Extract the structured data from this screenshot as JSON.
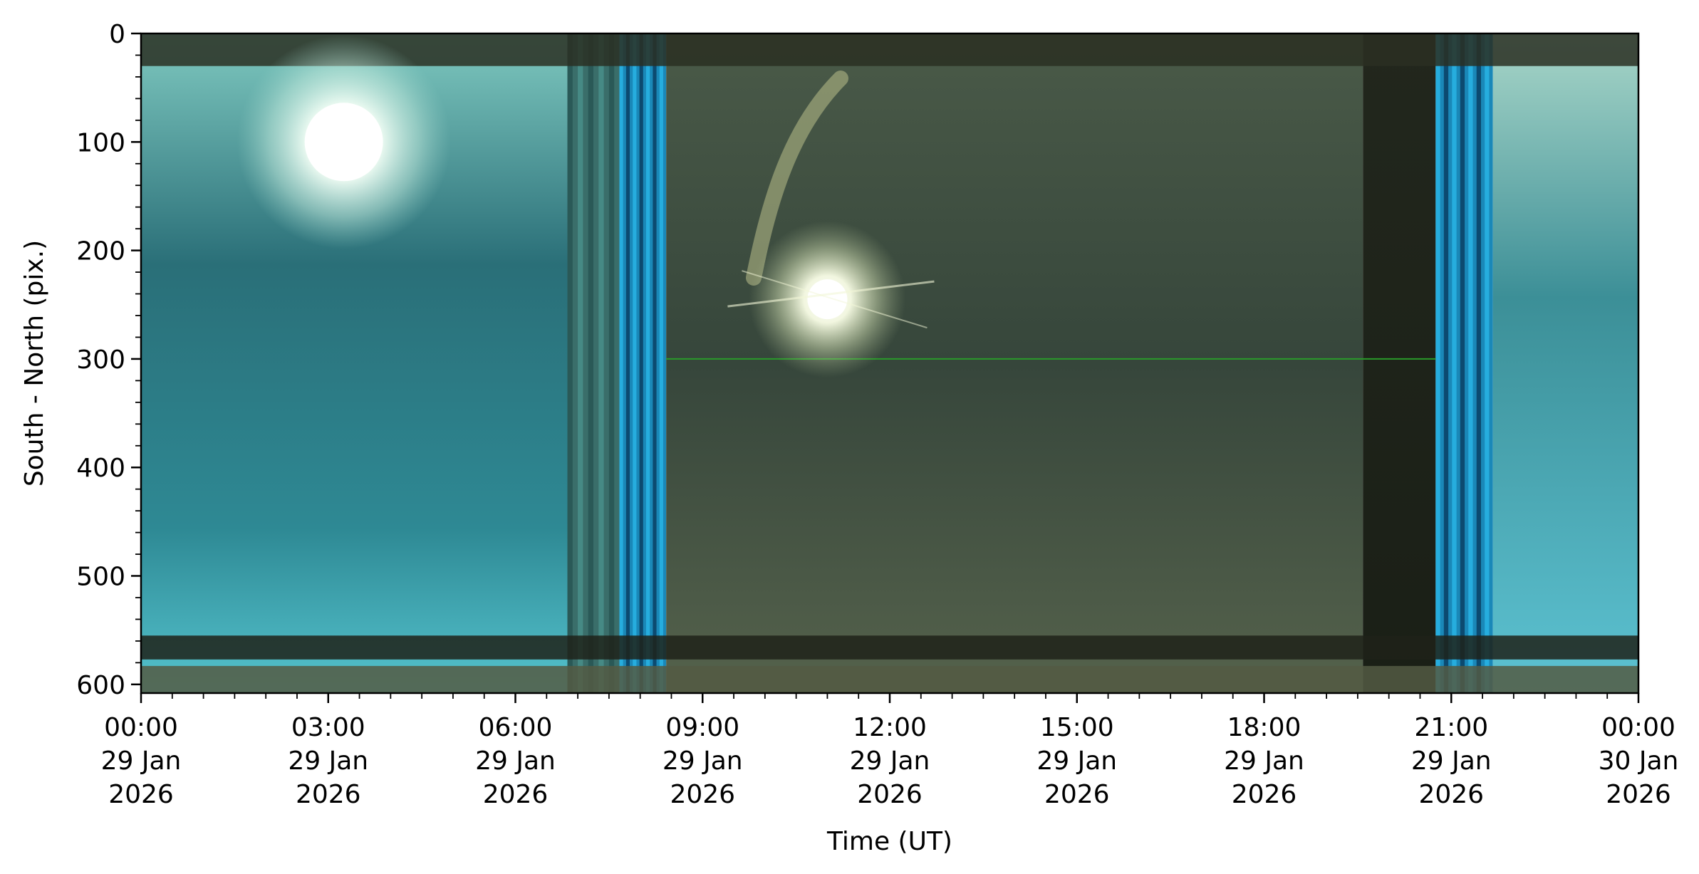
{
  "chart_data": {
    "type": "heatmap",
    "title": "",
    "xlabel": "Time (UT)",
    "ylabel": "South - North (pix.)",
    "x_range": [
      "2026-01-29T00:00",
      "2026-01-30T00:00"
    ],
    "ylim": [
      608,
      0
    ],
    "y_inverted": true,
    "grid": false,
    "x_ticks": [
      {
        "time": "2026-01-29T00:00",
        "label_lines": [
          "00:00",
          "29 Jan",
          "2026"
        ]
      },
      {
        "time": "2026-01-29T03:00",
        "label_lines": [
          "03:00",
          "29 Jan",
          "2026"
        ]
      },
      {
        "time": "2026-01-29T06:00",
        "label_lines": [
          "06:00",
          "29 Jan",
          "2026"
        ]
      },
      {
        "time": "2026-01-29T09:00",
        "label_lines": [
          "09:00",
          "29 Jan",
          "2026"
        ]
      },
      {
        "time": "2026-01-29T12:00",
        "label_lines": [
          "12:00",
          "29 Jan",
          "2026"
        ]
      },
      {
        "time": "2026-01-29T15:00",
        "label_lines": [
          "15:00",
          "29 Jan",
          "2026"
        ]
      },
      {
        "time": "2026-01-29T18:00",
        "label_lines": [
          "18:00",
          "29 Jan",
          "2026"
        ]
      },
      {
        "time": "2026-01-29T21:00",
        "label_lines": [
          "21:00",
          "29 Jan",
          "2026"
        ]
      },
      {
        "time": "2026-01-30T00:00",
        "label_lines": [
          "00:00",
          "30 Jan",
          "2026"
        ]
      }
    ],
    "y_ticks": [
      {
        "value": 0,
        "label": "0"
      },
      {
        "value": 100,
        "label": "100"
      },
      {
        "value": 200,
        "label": "200"
      },
      {
        "value": 300,
        "label": "300"
      },
      {
        "value": 400,
        "label": "400"
      },
      {
        "value": 500,
        "label": "500"
      },
      {
        "value": 600,
        "label": "600"
      }
    ],
    "x_minor_ticks_per_major": 6,
    "y_minor_tick_step": 20,
    "bands": [
      {
        "from": "2026-01-29T00:00",
        "to": "2026-01-29T06:50",
        "color": "#2f7f86",
        "description": "daylight cyan"
      },
      {
        "from": "2026-01-29T06:50",
        "to": "2026-01-29T07:40",
        "color": "#3a6e6a",
        "description": "twilight transition"
      },
      {
        "from": "2026-01-29T07:40",
        "to": "2026-01-29T08:25",
        "color": "#1a88b8",
        "description": "blue stripes"
      },
      {
        "from": "2026-01-29T08:25",
        "to": "2026-01-29T19:35",
        "color": "#3b4c3f",
        "description": "night dark green"
      },
      {
        "from": "2026-01-29T19:35",
        "to": "2026-01-29T20:45",
        "color": "#1c2218",
        "description": "darker night"
      },
      {
        "from": "2026-01-29T20:45",
        "to": "2026-01-29T21:40",
        "color": "#1a88b8",
        "description": "blue stripes"
      },
      {
        "from": "2026-01-29T21:40",
        "to": "2026-01-30T00:00",
        "color": "#3a8d95",
        "description": "daylight cyan"
      }
    ],
    "horizontal_features": [
      {
        "from_y": 0,
        "to_y": 30,
        "color": "#2a2f22",
        "description": "top dark band"
      },
      {
        "from_y": 555,
        "to_y": 577,
        "color": "#1e2219",
        "description": "lower dark band"
      },
      {
        "from_y": 583,
        "to_y": 608,
        "color": "#535a43",
        "description": "bottom band"
      }
    ],
    "bright_spots": [
      {
        "time": "2026-01-29T03:15",
        "y": 100,
        "color": "#ffffff",
        "description": "sun"
      },
      {
        "time": "2026-01-29T11:00",
        "y": 245,
        "color": "#ffffee",
        "description": "moon"
      }
    ],
    "line_features": [
      {
        "from": "2026-01-29T08:25",
        "to": "2026-01-29T20:45",
        "y": 300,
        "color": "#2a9a2a",
        "description": "green horizontal streak"
      }
    ]
  }
}
